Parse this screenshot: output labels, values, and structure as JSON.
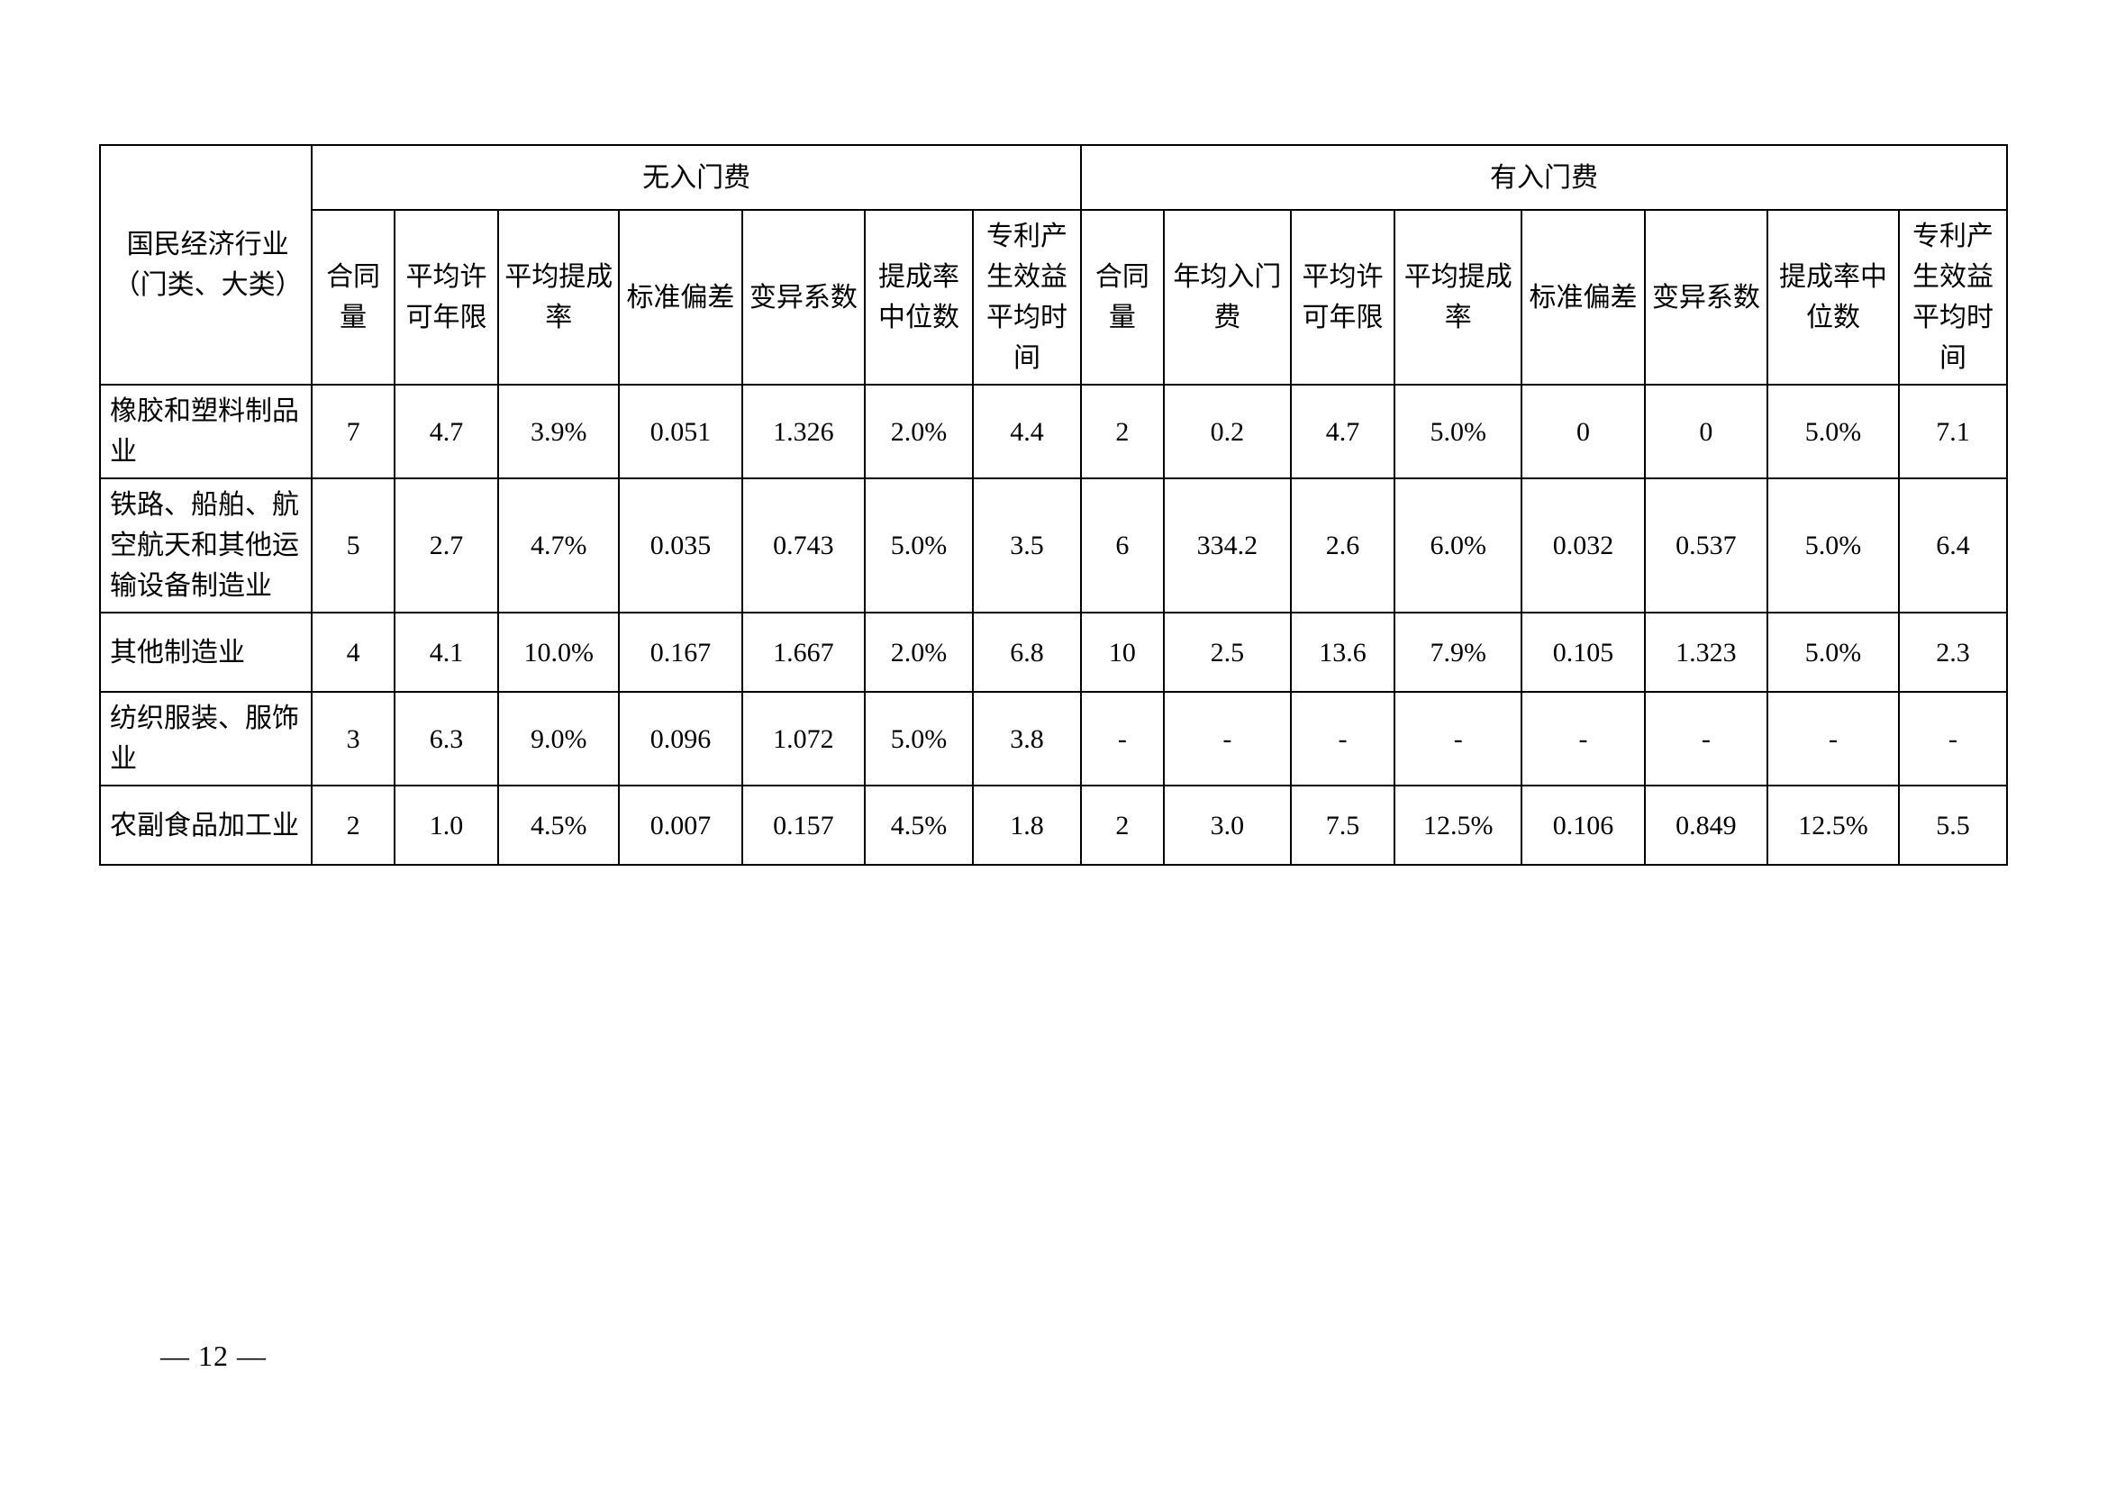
{
  "page_number": "— 12 —",
  "colors": {
    "text": "#000000",
    "background": "#ffffff",
    "border": "#000000"
  },
  "font": {
    "family": "SimSun",
    "cell_size_pt": 22,
    "header_size_pt": 22
  },
  "table": {
    "row_label_header": "国民经济行业（门类、大类）",
    "groups": [
      {
        "label": "无入门费"
      },
      {
        "label": "有入门费"
      }
    ],
    "columns_no_fee": [
      "合同量",
      "平均许可年限",
      "平均提成率",
      "标准偏差",
      "变异系数",
      "提成率中位数",
      "专利产生效益平均时间"
    ],
    "columns_with_fee": [
      "合同量",
      "年均入门费",
      "平均许可年限",
      "平均提成率",
      "标准偏差",
      "变异系数",
      "提成率中位数",
      "专利产生效益平均时间"
    ],
    "rows": [
      {
        "label": "橡胶和塑料制品业",
        "no_fee": [
          "7",
          "4.7",
          "3.9%",
          "0.051",
          "1.326",
          "2.0%",
          "4.4"
        ],
        "with_fee": [
          "2",
          "0.2",
          "4.7",
          "5.0%",
          "0",
          "0",
          "5.0%",
          "7.1"
        ]
      },
      {
        "label": "铁路、船舶、航空航天和其他运输设备制造业",
        "no_fee": [
          "5",
          "2.7",
          "4.7%",
          "0.035",
          "0.743",
          "5.0%",
          "3.5"
        ],
        "with_fee": [
          "6",
          "334.2",
          "2.6",
          "6.0%",
          "0.032",
          "0.537",
          "5.0%",
          "6.4"
        ]
      },
      {
        "label": "其他制造业",
        "no_fee": [
          "4",
          "4.1",
          "10.0%",
          "0.167",
          "1.667",
          "2.0%",
          "6.8"
        ],
        "with_fee": [
          "10",
          "2.5",
          "13.6",
          "7.9%",
          "0.105",
          "1.323",
          "5.0%",
          "2.3"
        ]
      },
      {
        "label": "纺织服装、服饰业",
        "no_fee": [
          "3",
          "6.3",
          "9.0%",
          "0.096",
          "1.072",
          "5.0%",
          "3.8"
        ],
        "with_fee": [
          "-",
          "-",
          "-",
          "-",
          "-",
          "-",
          "-",
          "-"
        ]
      },
      {
        "label": "农副食品加工业",
        "no_fee": [
          "2",
          "1.0",
          "4.5%",
          "0.007",
          "0.157",
          "4.5%",
          "1.8"
        ],
        "with_fee": [
          "2",
          "3.0",
          "7.5",
          "12.5%",
          "0.106",
          "0.849",
          "12.5%",
          "5.5"
        ]
      }
    ]
  }
}
